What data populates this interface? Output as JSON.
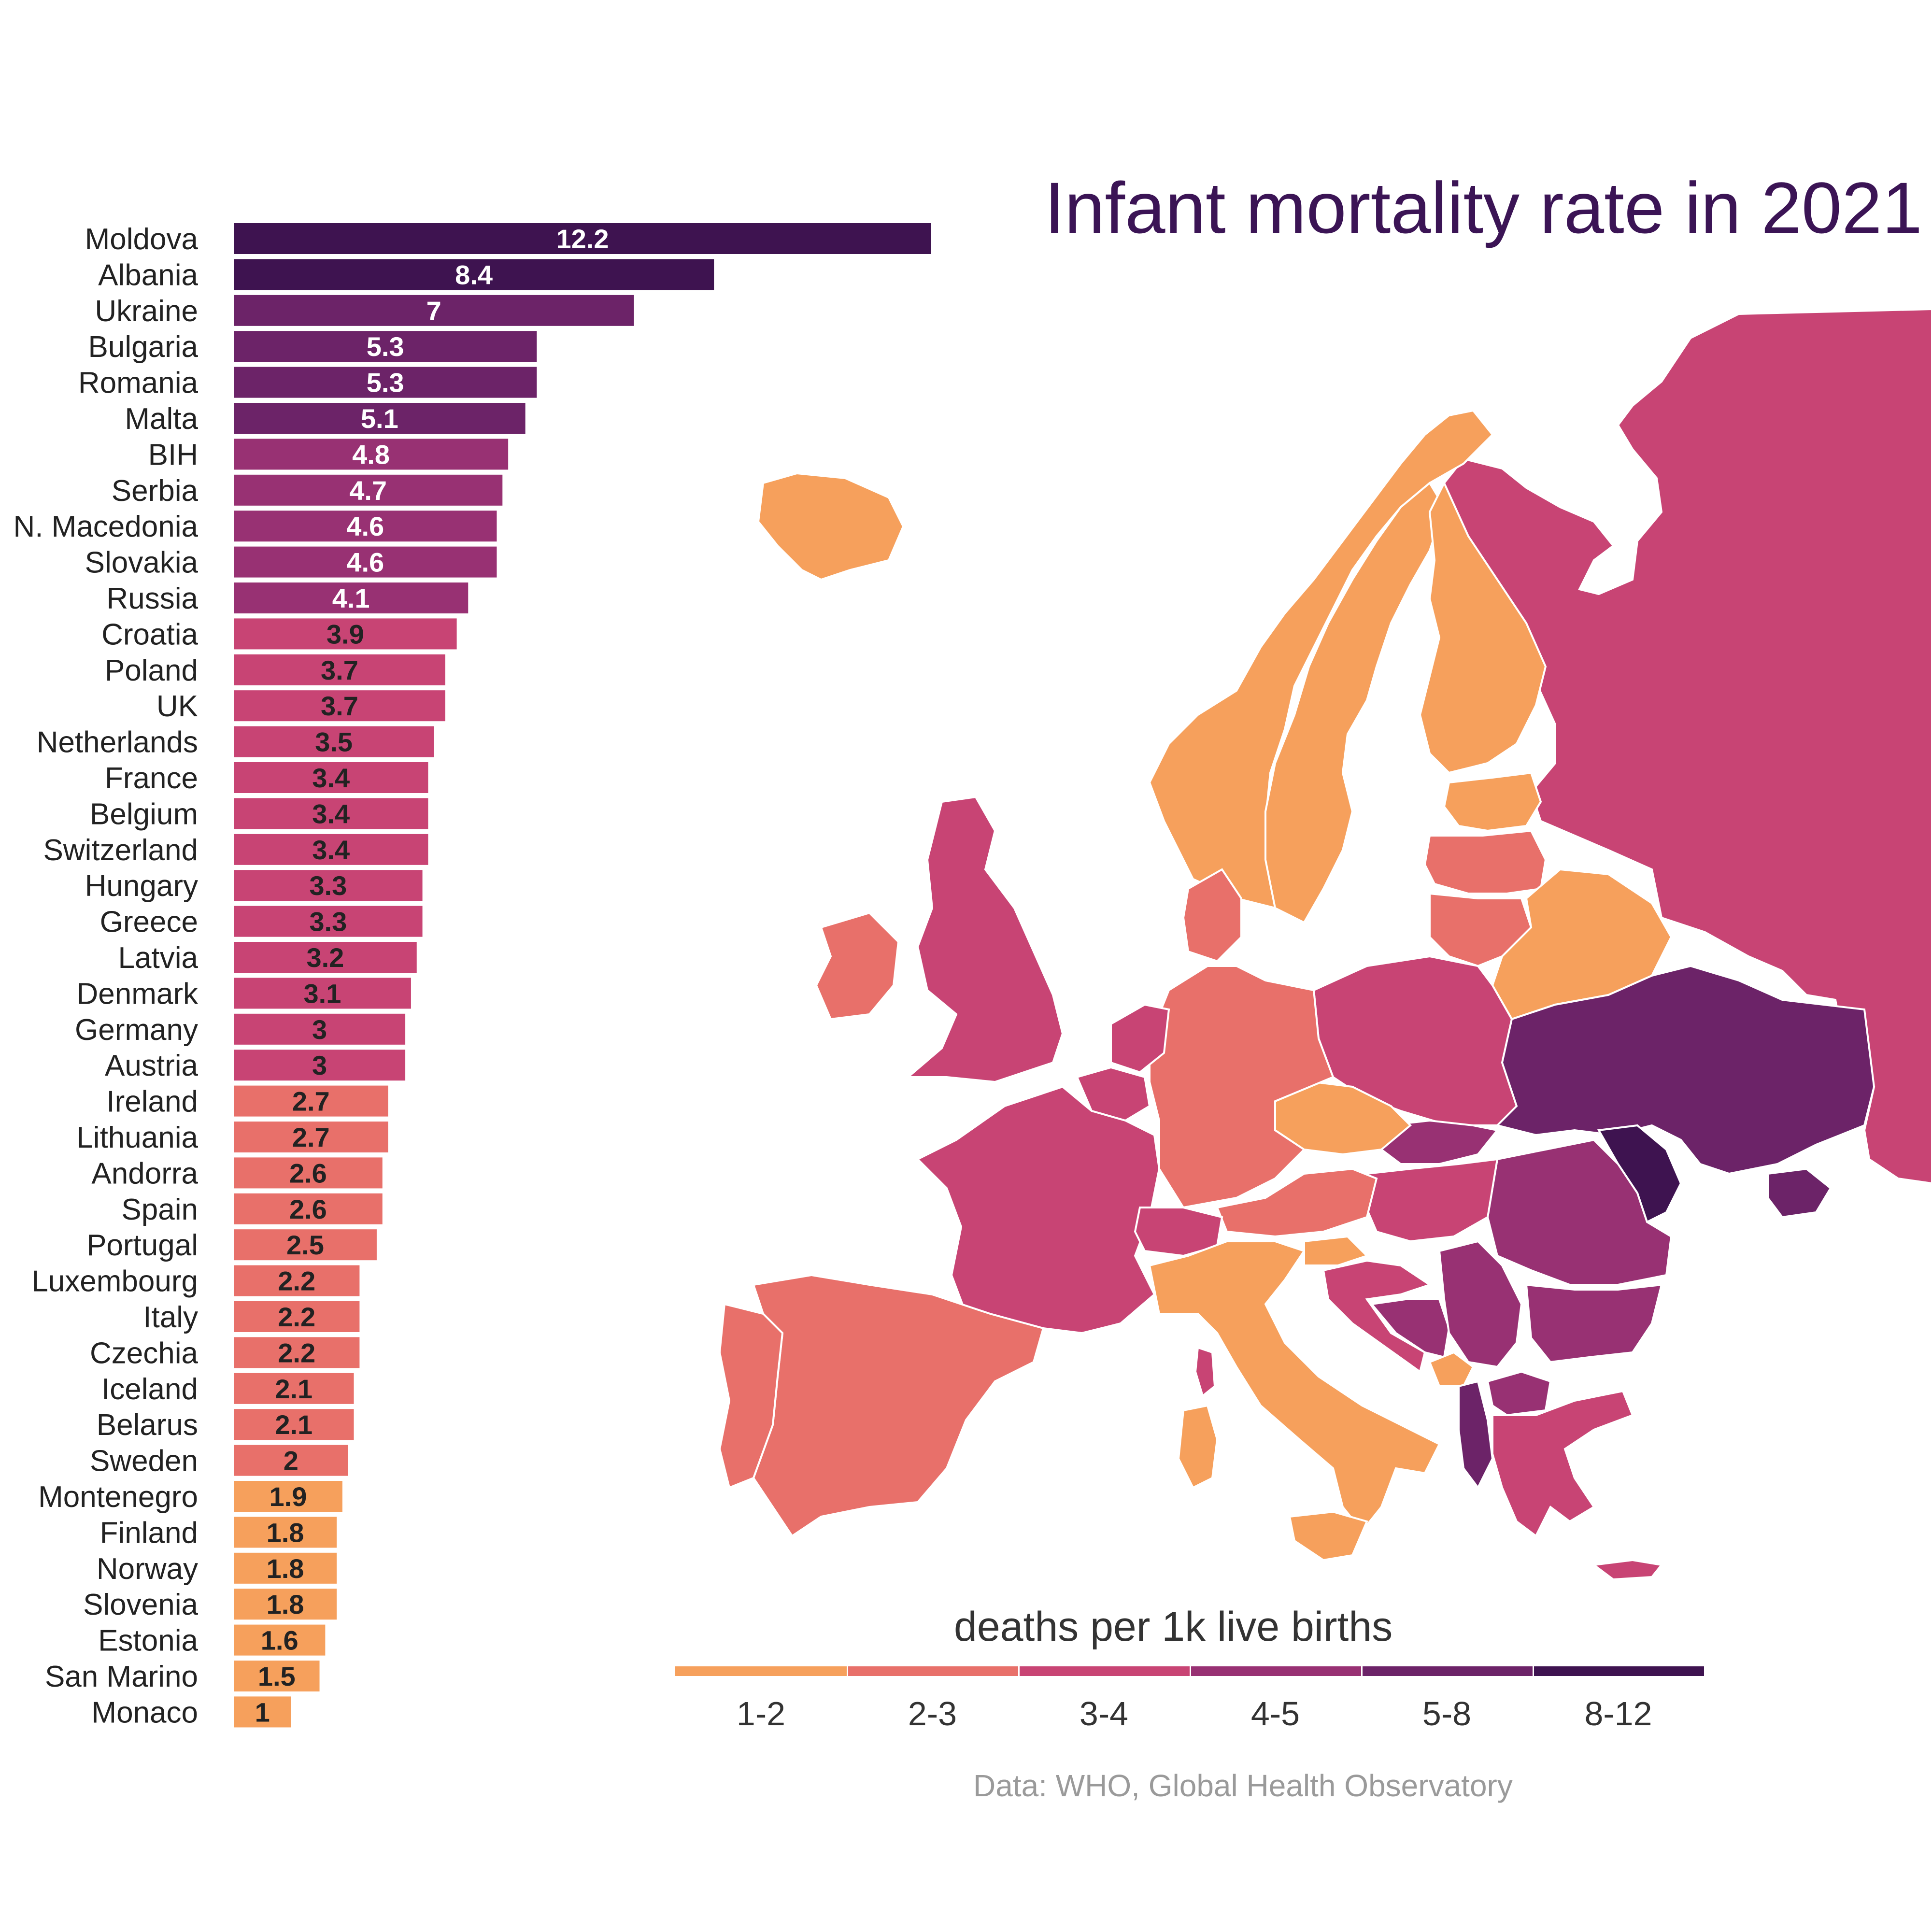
{
  "title": "Infant mortality rate in 2021",
  "legend": {
    "title": "deaths per 1k live births",
    "bins": [
      {
        "label": "1-2",
        "color": "#f6a05c"
      },
      {
        "label": "2-3",
        "color": "#e8706a"
      },
      {
        "label": "3-4",
        "color": "#c84474"
      },
      {
        "label": "4-5",
        "color": "#983173"
      },
      {
        "label": "5-8",
        "color": "#6c2368"
      },
      {
        "label": "8-12",
        "color": "#3e1350"
      }
    ]
  },
  "source": "Data: WHO, Global Health Observatory",
  "chart_data": {
    "type": "bar",
    "orientation": "horizontal",
    "sort": "descending",
    "categories": [
      "Moldova",
      "Albania",
      "Ukraine",
      "Bulgaria",
      "Romania",
      "Malta",
      "BIH",
      "Serbia",
      "N. Macedonia",
      "Slovakia",
      "Russia",
      "Croatia",
      "Poland",
      "UK",
      "Netherlands",
      "France",
      "Belgium",
      "Switzerland",
      "Hungary",
      "Greece",
      "Latvia",
      "Denmark",
      "Germany",
      "Austria",
      "Ireland",
      "Lithuania",
      "Andorra",
      "Spain",
      "Portugal",
      "Luxembourg",
      "Italy",
      "Czechia",
      "Iceland",
      "Belarus",
      "Sweden",
      "Montenegro",
      "Finland",
      "Norway",
      "Slovenia",
      "Estonia",
      "San Marino",
      "Monaco"
    ],
    "values": [
      12.2,
      8.4,
      7,
      5.3,
      5.3,
      5.1,
      4.8,
      4.7,
      4.6,
      4.6,
      4.1,
      3.9,
      3.7,
      3.7,
      3.5,
      3.4,
      3.4,
      3.4,
      3.3,
      3.3,
      3.2,
      3.1,
      3,
      3,
      2.7,
      2.7,
      2.6,
      2.6,
      2.5,
      2.2,
      2.2,
      2.2,
      2.1,
      2.1,
      2,
      1.9,
      1.8,
      1.8,
      1.8,
      1.6,
      1.5,
      1
    ],
    "data_labels": [
      "12.2",
      "8.4",
      "7",
      "5.3",
      "5.3",
      "5.1",
      "4.8",
      "4.7",
      "4.6",
      "4.6",
      "4.1",
      "3.9",
      "3.7",
      "3.7",
      "3.5",
      "3.4",
      "3.4",
      "3.4",
      "3.3",
      "3.3",
      "3.2",
      "3.1",
      "3",
      "3",
      "2.7",
      "2.7",
      "2.6",
      "2.6",
      "2.5",
      "2.2",
      "2.2",
      "2.2",
      "2.1",
      "2.1",
      "2",
      "1.9",
      "1.8",
      "1.8",
      "1.8",
      "1.6",
      "1.5",
      "1"
    ],
    "xlim": [
      0,
      12.2
    ],
    "color_bins": [
      1,
      2,
      3,
      4,
      5,
      8,
      12
    ],
    "map": {
      "type": "choropleth",
      "region": "Europe",
      "legend_placement": "bottom"
    }
  }
}
